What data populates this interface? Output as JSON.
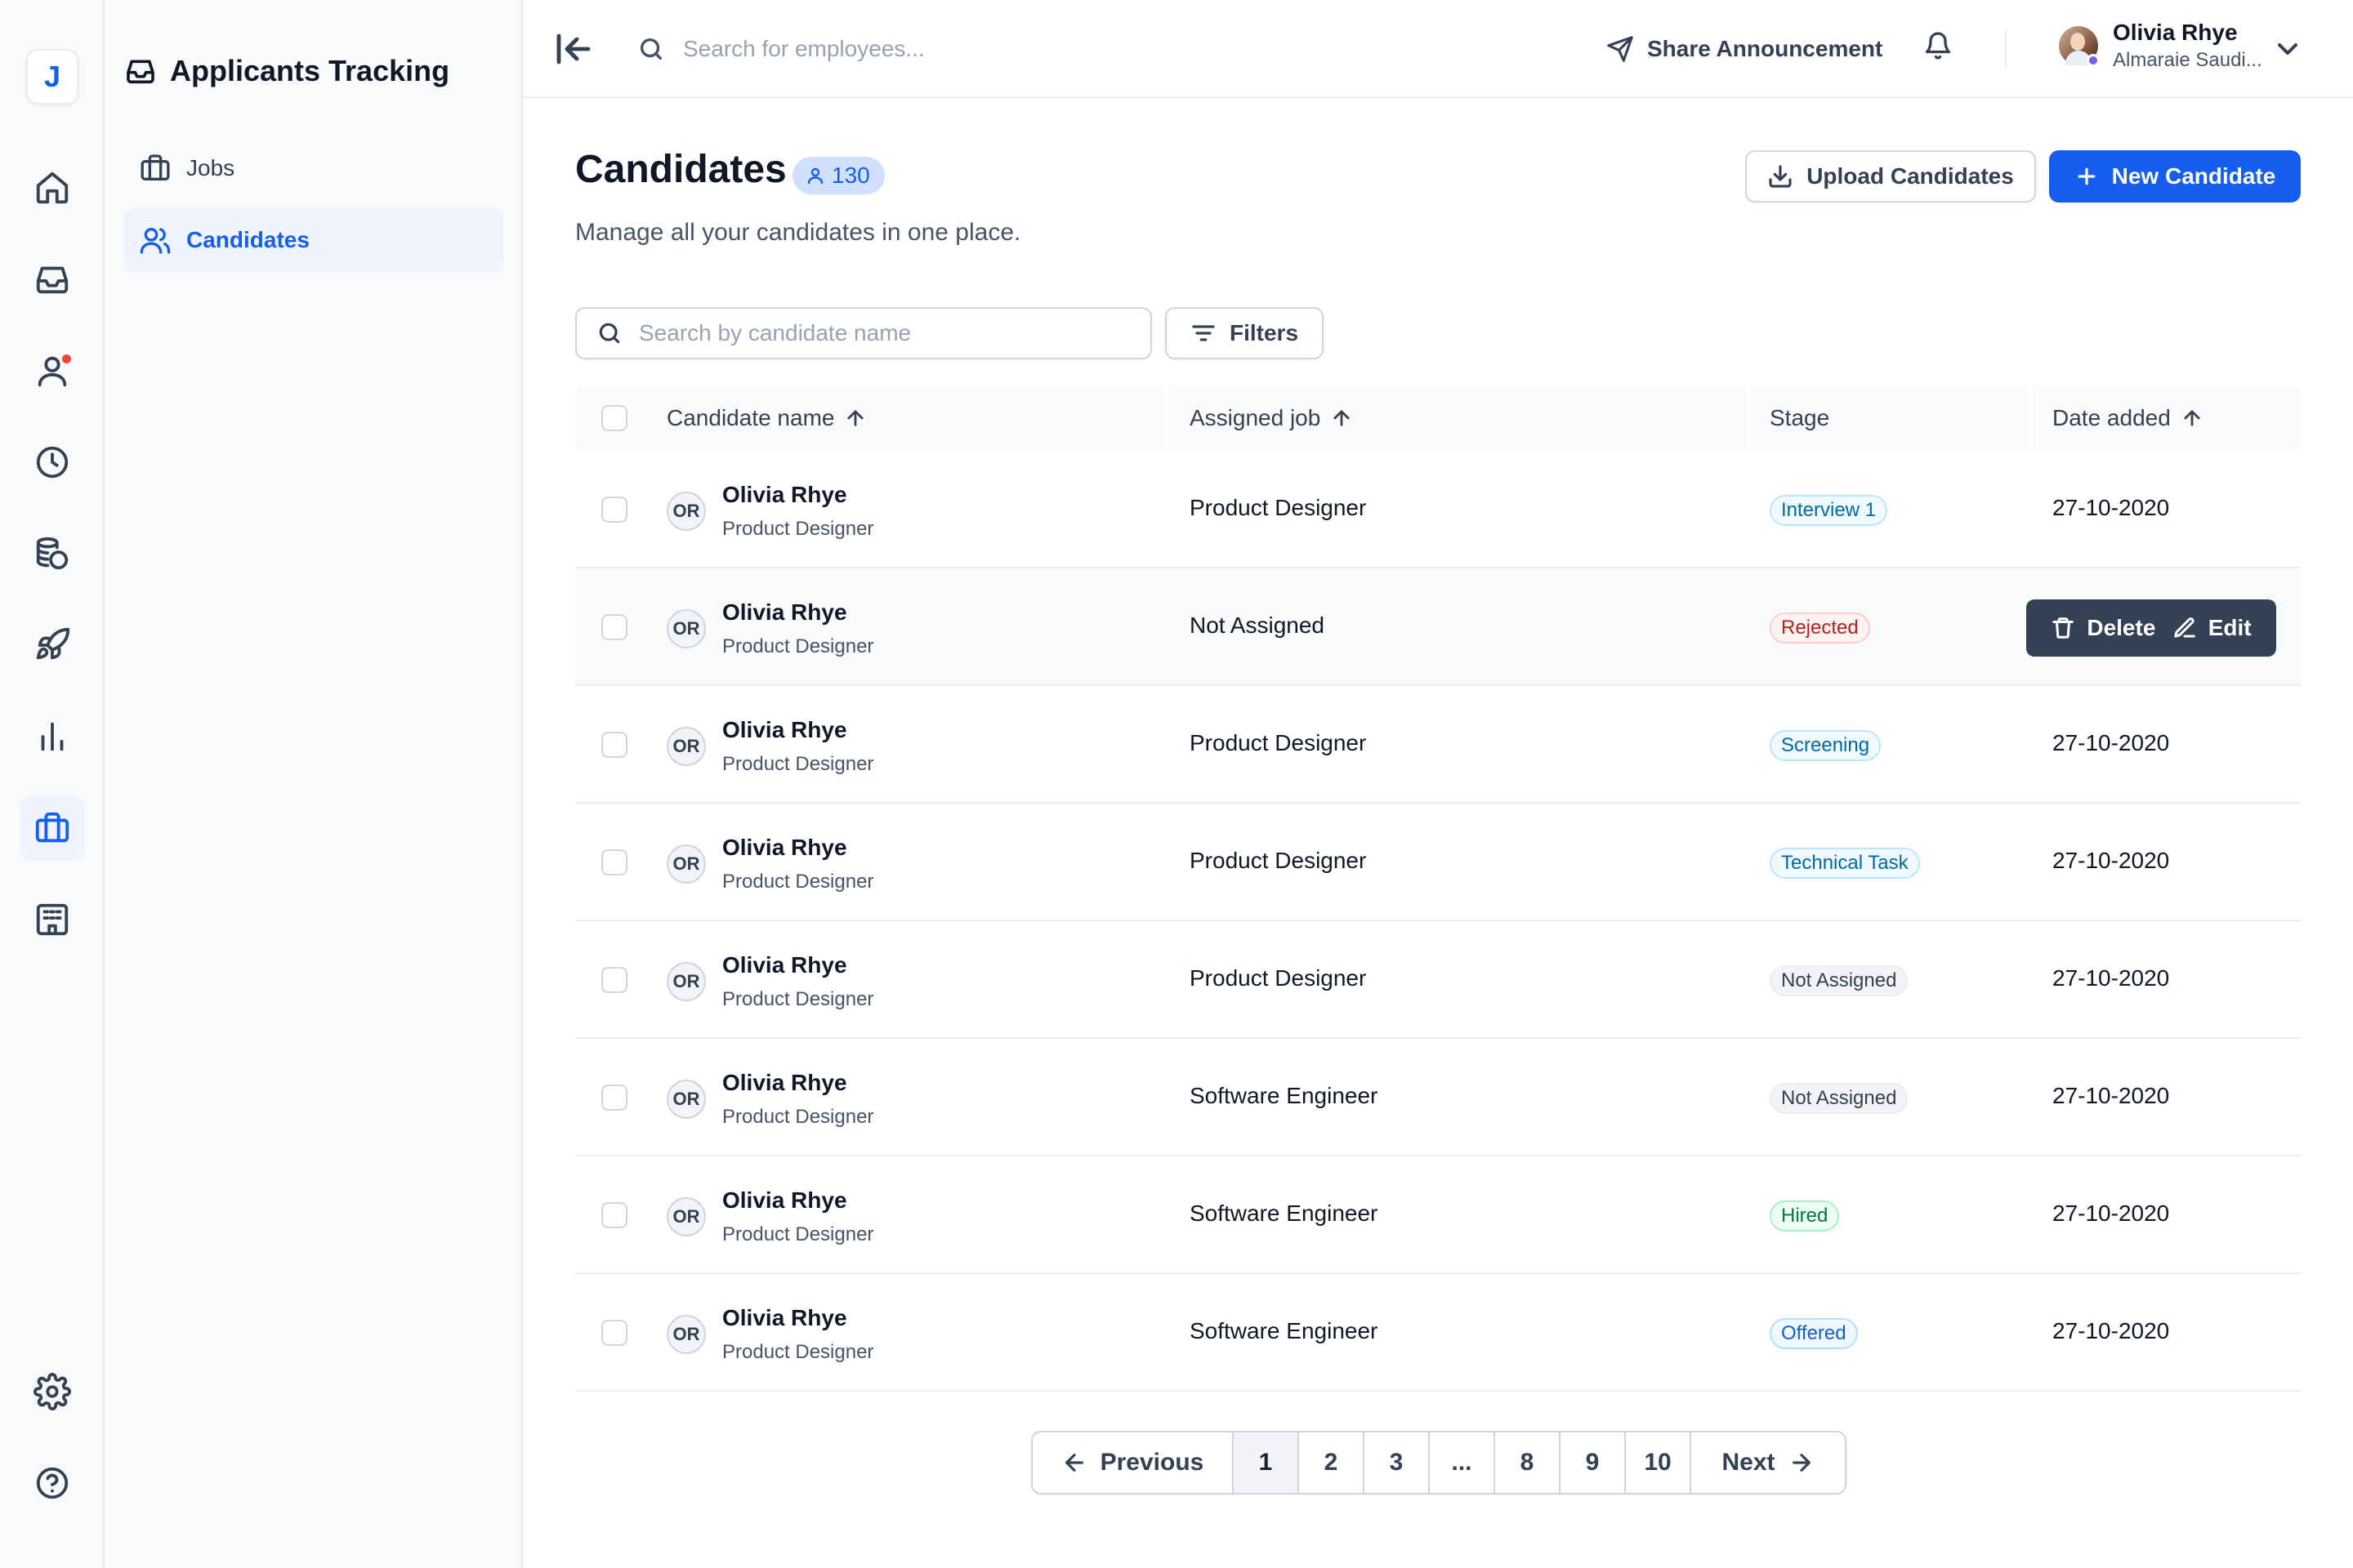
{
  "app": {
    "logo_letter": "J"
  },
  "rail": {
    "items": [
      {
        "icon": "home-icon"
      },
      {
        "icon": "inbox-icon"
      },
      {
        "icon": "user-icon",
        "notification": true
      },
      {
        "icon": "clock-icon"
      },
      {
        "icon": "coins-icon"
      },
      {
        "icon": "rocket-icon"
      },
      {
        "icon": "bar-chart-icon"
      },
      {
        "icon": "briefcase-icon",
        "active": true
      },
      {
        "icon": "building-icon"
      }
    ],
    "bottom": [
      {
        "icon": "settings-icon"
      },
      {
        "icon": "help-icon"
      }
    ]
  },
  "sidebar": {
    "title": "Applicants Tracking",
    "items": [
      {
        "label": "Jobs",
        "icon": "briefcase-icon"
      },
      {
        "label": "Candidates",
        "icon": "users-icon",
        "active": true
      }
    ]
  },
  "topbar": {
    "search_placeholder": "Search for employees...",
    "share_label": "Share Announcement",
    "user_name": "Olivia Rhye",
    "user_company": "Almaraie Saudi..."
  },
  "header": {
    "title": "Candidates",
    "count": "130",
    "subtitle": "Manage all your candidates in one place.",
    "upload_label": "Upload Candidates",
    "new_label": "New Candidate"
  },
  "toolbar": {
    "search_placeholder": "Search by candidate name",
    "filters_label": "Filters"
  },
  "table": {
    "columns": {
      "name": "Candidate name",
      "job": "Assigned job",
      "stage": "Stage",
      "date": "Date added"
    },
    "rows": [
      {
        "initials": "OR",
        "name": "Olivia Rhye",
        "role": "Product Designer",
        "job": "Product Designer",
        "stage": "Interview 1",
        "date": "27-10-2020"
      },
      {
        "initials": "OR",
        "name": "Olivia Rhye",
        "role": "Product Designer",
        "job": "Not Assigned",
        "stage": "Rejected",
        "date": "",
        "hover": true
      },
      {
        "initials": "OR",
        "name": "Olivia Rhye",
        "role": "Product Designer",
        "job": "Product Designer",
        "stage": "Screening",
        "date": "27-10-2020"
      },
      {
        "initials": "OR",
        "name": "Olivia Rhye",
        "role": "Product Designer",
        "job": "Product Designer",
        "stage": "Technical Task",
        "date": "27-10-2020"
      },
      {
        "initials": "OR",
        "name": "Olivia Rhye",
        "role": "Product Designer",
        "job": "Product Designer",
        "stage": "Not Assigned",
        "date": "27-10-2020"
      },
      {
        "initials": "OR",
        "name": "Olivia Rhye",
        "role": "Product Designer",
        "job": "Software Engineer",
        "stage": "Not Assigned",
        "date": "27-10-2020"
      },
      {
        "initials": "OR",
        "name": "Olivia Rhye",
        "role": "Product Designer",
        "job": "Software Engineer",
        "stage": "Hired",
        "date": "27-10-2020"
      },
      {
        "initials": "OR",
        "name": "Olivia Rhye",
        "role": "Product Designer",
        "job": "Software Engineer",
        "stage": "Offered",
        "date": "27-10-2020"
      }
    ],
    "row_actions": {
      "delete_label": "Delete",
      "edit_label": "Edit"
    }
  },
  "stage_colors": {
    "Interview 1": {
      "bg": "#f0f9ff",
      "fg": "#026aa2",
      "border": "#b9e6fe"
    },
    "Rejected": {
      "bg": "#fef3f2",
      "fg": "#b42318",
      "border": "#fecdca"
    },
    "Screening": {
      "bg": "#f0f9ff",
      "fg": "#026aa2",
      "border": "#b9e6fe"
    },
    "Technical Task": {
      "bg": "#f0f9ff",
      "fg": "#026aa2",
      "border": "#b9e6fe"
    },
    "Not Assigned": {
      "bg": "#f2f4f7",
      "fg": "#344054",
      "border": "#eaecf0"
    },
    "Hired": {
      "bg": "#ecfdf3",
      "fg": "#067647",
      "border": "#abefc6"
    },
    "Offered": {
      "bg": "#eff8ff",
      "fg": "#175cd3",
      "border": "#b2ddff"
    }
  },
  "pagination": {
    "prev_label": "Previous",
    "next_label": "Next",
    "pages": [
      "1",
      "2",
      "3",
      "...",
      "8",
      "9",
      "10"
    ],
    "current": "1"
  }
}
